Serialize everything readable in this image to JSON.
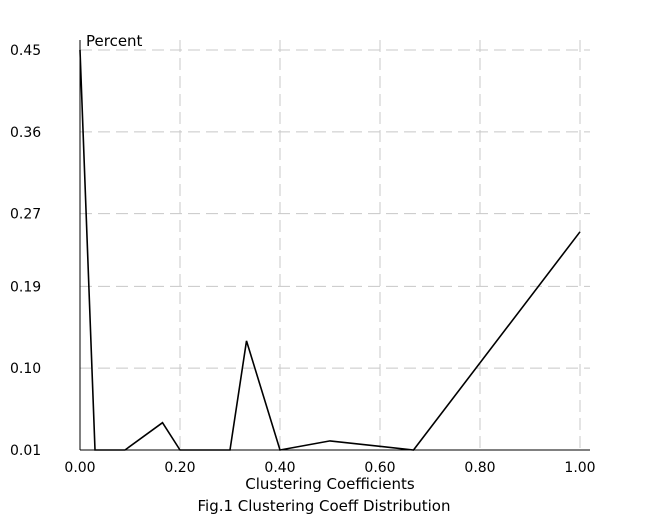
{
  "chart_data": {
    "type": "line",
    "title": "Fig.1 Clustering Coeff Distribution",
    "xlabel": "Clustering Coefficients",
    "ylabel": "Percent",
    "xlim": [
      0,
      1
    ],
    "ylim": [
      0.01,
      0.45
    ],
    "x_ticks": [
      "0.00",
      "0.20",
      "0.40",
      "0.60",
      "0.80",
      "1.00"
    ],
    "y_ticks": [
      "0.01",
      "0.10",
      "0.19",
      "0.27",
      "0.36",
      "0.45"
    ],
    "grid": true,
    "series": [
      {
        "x": [
          0.0,
          0.03,
          0.09,
          0.165,
          0.2,
          0.3,
          0.333,
          0.4,
          0.5,
          0.667,
          1.0
        ],
        "y": [
          0.45,
          0.01,
          0.01,
          0.04,
          0.01,
          0.01,
          0.13,
          0.01,
          0.02,
          0.01,
          0.25
        ],
        "color": "#000000"
      }
    ]
  }
}
